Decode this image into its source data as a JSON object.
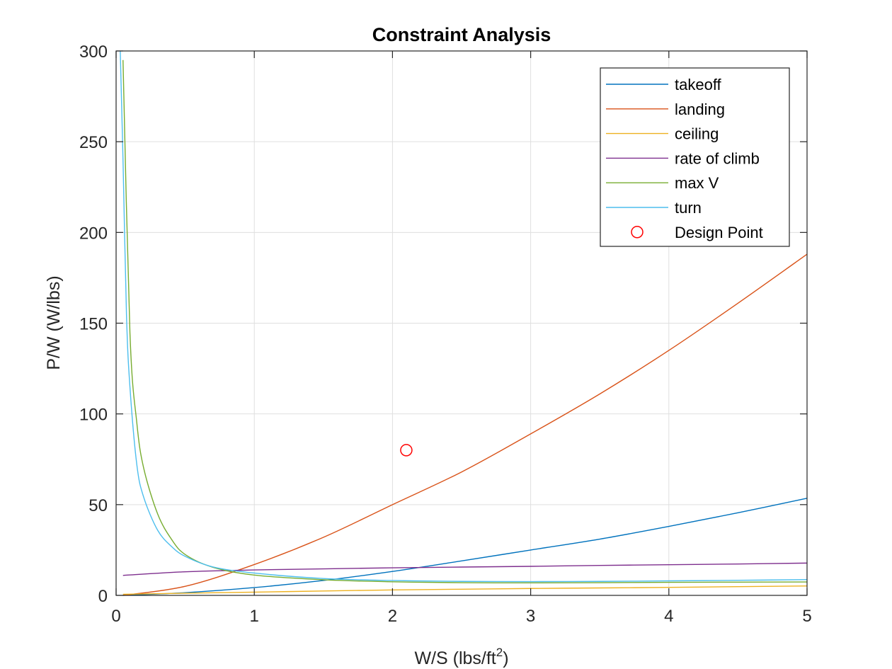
{
  "chart_data": {
    "type": "line",
    "title": "Constraint Analysis",
    "xlabel": "W/S (lbs/ft",
    "xlabel_superscript": "2",
    "xlabel_suffix": ")",
    "ylabel": "P/W (W/lbs)",
    "xlim": [
      0,
      5
    ],
    "ylim": [
      0,
      300
    ],
    "xticks": [
      "0",
      "1",
      "2",
      "3",
      "4",
      "5"
    ],
    "yticks": [
      "0",
      "50",
      "100",
      "150",
      "200",
      "250",
      "300"
    ],
    "grid": true,
    "legend_position": "top-right",
    "series": [
      {
        "name": "takeoff",
        "color": "#0072BD",
        "x": [
          0.05,
          0.5,
          1,
          1.5,
          2,
          2.5,
          3,
          3.5,
          4,
          4.5,
          5
        ],
        "y": [
          0.05,
          1.5,
          4.3,
          8.2,
          13.2,
          19,
          25,
          31,
          38,
          45.5,
          53.5
        ]
      },
      {
        "name": "landing",
        "color": "#D95319",
        "x": [
          0.05,
          0.5,
          1,
          1.5,
          2,
          2.5,
          3,
          3.5,
          4,
          4.5,
          5
        ],
        "y": [
          0,
          5,
          17,
          32,
          50,
          68,
          89,
          111,
          135,
          161,
          188
        ]
      },
      {
        "name": "ceiling",
        "color": "#EDB120",
        "x": [
          0.05,
          0.5,
          1,
          1.5,
          2,
          2.5,
          3,
          3.5,
          4,
          4.5,
          5
        ],
        "y": [
          0.6,
          1.2,
          1.8,
          2.4,
          3,
          3.4,
          3.8,
          4.1,
          4.4,
          4.8,
          5.2
        ]
      },
      {
        "name": "rate of climb",
        "color": "#7E2F8E",
        "x": [
          0.05,
          0.5,
          1,
          1.5,
          2,
          2.5,
          3,
          3.5,
          4,
          4.5,
          5
        ],
        "y": [
          11,
          13,
          14,
          14.6,
          15.2,
          15.6,
          16,
          16.5,
          16.9,
          17.3,
          17.8
        ]
      },
      {
        "name": "max V",
        "color": "#77AC30",
        "x": [
          0.05,
          0.1,
          0.15,
          0.2,
          0.3,
          0.4,
          0.5,
          0.7,
          1,
          1.5,
          2,
          2.5,
          3,
          3.5,
          4,
          4.5,
          5
        ],
        "y": [
          295,
          145,
          95,
          70,
          45,
          31,
          22.5,
          15.5,
          11.2,
          8.6,
          7.5,
          7,
          6.9,
          7,
          7.2,
          7.3,
          7.4
        ]
      },
      {
        "name": "turn",
        "color": "#4DBEEE",
        "x": [
          0.03,
          0.05,
          0.075,
          0.1,
          0.15,
          0.2,
          0.3,
          0.4,
          0.5,
          0.7,
          1,
          1.5,
          2,
          2.5,
          3,
          3.5,
          4,
          4.5,
          5
        ],
        "y": [
          300,
          240,
          155,
          115,
          72,
          54,
          36,
          27,
          21.5,
          15.7,
          12.3,
          9.3,
          8.2,
          7.7,
          7.6,
          7.7,
          8,
          8.3,
          8.7
        ]
      }
    ],
    "points": [
      {
        "name": "Design Point",
        "color": "#FF0000",
        "marker": "circle",
        "x": 2.1,
        "y": 80
      }
    ]
  }
}
